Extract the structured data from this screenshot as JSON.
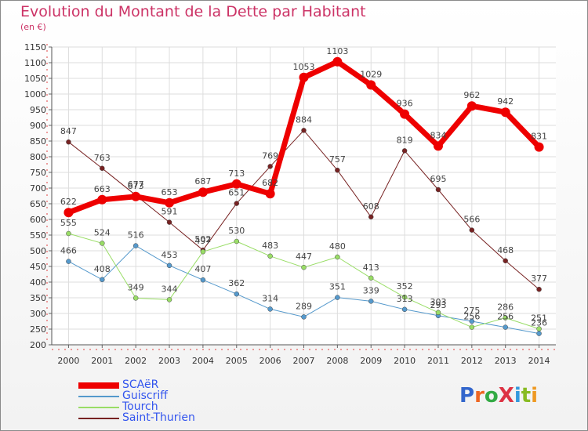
{
  "title": "Evolution du Montant de la Dette par Habitant",
  "unit": "(en €)",
  "logo": "ProXiti",
  "chart_data": {
    "type": "line",
    "x": [
      "2000",
      "2001",
      "2002",
      "2003",
      "2004",
      "2005",
      "2006",
      "2007",
      "2008",
      "2009",
      "2010",
      "2011",
      "2012",
      "2013",
      "2014"
    ],
    "ylim": [
      200,
      1150
    ],
    "yticks": [
      200,
      250,
      300,
      350,
      400,
      450,
      500,
      550,
      600,
      650,
      700,
      750,
      800,
      850,
      900,
      950,
      1000,
      1050,
      1100,
      1150
    ],
    "grid": true,
    "legend_position": "bottom-left",
    "series": [
      {
        "name": "SCAëR",
        "color": "#ee0000",
        "values": [
          622,
          663,
          673,
          653,
          687,
          713,
          682,
          1053,
          1103,
          1029,
          936,
          834,
          962,
          942,
          831
        ]
      },
      {
        "name": "Guiscriff",
        "color": "#5599cc",
        "values": [
          466,
          408,
          516,
          453,
          407,
          362,
          314,
          289,
          351,
          339,
          313,
          293,
          275,
          256,
          236
        ]
      },
      {
        "name": "Tourch",
        "color": "#99dd66",
        "values": [
          555,
          524,
          349,
          344,
          497,
          530,
          483,
          447,
          480,
          413,
          352,
          303,
          256,
          286,
          251
        ]
      },
      {
        "name": "Saint-Thurien",
        "color": "#772222",
        "values": [
          847,
          763,
          677,
          591,
          502,
          651,
          769,
          884,
          757,
          608,
          819,
          695,
          566,
          468,
          377
        ]
      }
    ]
  }
}
